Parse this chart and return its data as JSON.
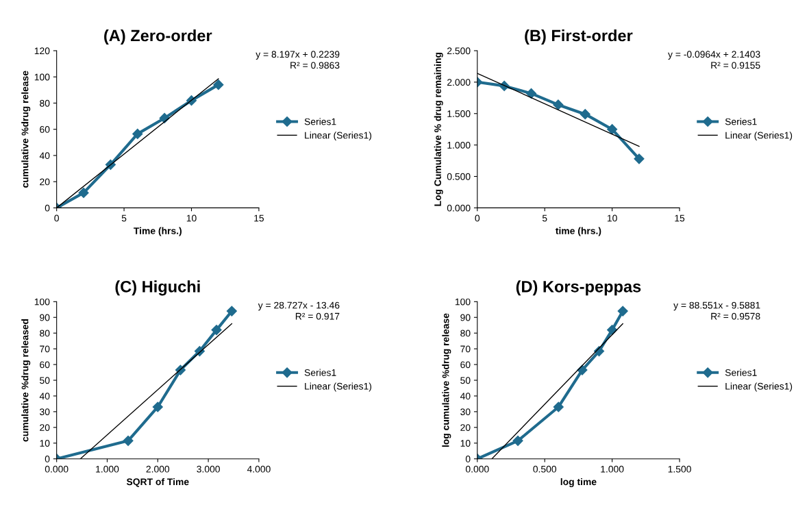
{
  "chart_data": [
    {
      "type": "line",
      "title": "(A) Zero-order",
      "xlabel": "Time (hrs.)",
      "ylabel": "cumulative %drug release",
      "x": [
        0,
        2,
        4,
        6,
        8,
        10,
        12
      ],
      "series": [
        {
          "name": "Series1",
          "color": "#1f6b8e",
          "values": [
            0,
            11.5,
            33,
            56.5,
            68.5,
            82,
            94
          ],
          "marker": "diamond"
        },
        {
          "name": "Linear (Series1)",
          "color": "#000000",
          "x": [
            0,
            12
          ],
          "values": [
            0,
            98.6
          ],
          "marker": "none"
        }
      ],
      "xlim": [
        0,
        15
      ],
      "xticks": [
        0,
        5,
        10,
        15
      ],
      "ylim": [
        0,
        120
      ],
      "yticks": [
        0,
        20,
        40,
        60,
        80,
        100,
        120
      ],
      "legend": "right",
      "grid": false,
      "annotations": [
        "y = 8.197x + 0.2239",
        "R² = 0.9863"
      ]
    },
    {
      "type": "line",
      "title": "(B) First-order",
      "xlabel": "time (hrs.)",
      "ylabel": "Log Cumulative % drug remaining",
      "x": [
        0,
        2,
        4,
        6,
        8,
        10,
        12
      ],
      "series": [
        {
          "name": "Series1",
          "color": "#1f6b8e",
          "values": [
            2.0,
            1.94,
            1.82,
            1.64,
            1.49,
            1.25,
            0.78
          ],
          "marker": "diamond"
        },
        {
          "name": "Linear (Series1)",
          "color": "#000000",
          "x": [
            0,
            12
          ],
          "values": [
            2.14,
            0.98
          ],
          "marker": "none"
        }
      ],
      "xlim": [
        0,
        15
      ],
      "xticks": [
        0,
        5,
        10,
        15
      ],
      "ylim": [
        0,
        2.5
      ],
      "yticks": [
        {
          "value": 0,
          "label": "0.000"
        },
        {
          "value": 0.5,
          "label": "0.500"
        },
        {
          "value": 1,
          "label": "1.000"
        },
        {
          "value": 1.5,
          "label": "1.500"
        },
        {
          "value": 2,
          "label": "2.000"
        },
        {
          "value": 2.5,
          "label": "2.500"
        }
      ],
      "legend": "right",
      "grid": false,
      "annotations": [
        "y = -0.0964x + 2.1403",
        "R² = 0.9155"
      ]
    },
    {
      "type": "line",
      "title": "(C) Higuchi",
      "xlabel": "SQRT of Time",
      "ylabel": "cumulative %drug released",
      "x": [
        0,
        1.414,
        2,
        2.449,
        2.828,
        3.162,
        3.464
      ],
      "series": [
        {
          "name": "Series1",
          "color": "#1f6b8e",
          "values": [
            0,
            11.5,
            33,
            56.5,
            68.5,
            82,
            94
          ],
          "marker": "diamond"
        },
        {
          "name": "Linear (Series1)",
          "color": "#000000",
          "x": [
            0.469,
            3.464
          ],
          "values": [
            0,
            86
          ],
          "marker": "none"
        }
      ],
      "xlim": [
        0,
        4
      ],
      "xticks": [
        {
          "value": 0,
          "label": "0.000"
        },
        {
          "value": 1,
          "label": "1.000"
        },
        {
          "value": 2,
          "label": "2.000"
        },
        {
          "value": 3,
          "label": "3.000"
        },
        {
          "value": 4,
          "label": "4.000"
        }
      ],
      "ylim": [
        0,
        100
      ],
      "yticks": [
        0,
        10,
        20,
        30,
        40,
        50,
        60,
        70,
        80,
        90,
        100
      ],
      "legend": "right",
      "grid": false,
      "annotations": [
        "y = 28.727x - 13.46",
        "R² = 0.917"
      ]
    },
    {
      "type": "line",
      "title": "(D) Kors-peppas",
      "xlabel": "log time",
      "ylabel": "log cumulative %drug release",
      "x": [
        0,
        0.301,
        0.602,
        0.778,
        0.903,
        1.0,
        1.079
      ],
      "series": [
        {
          "name": "Series1",
          "color": "#1f6b8e",
          "values": [
            0,
            11.5,
            33,
            56.5,
            68.5,
            82,
            94
          ],
          "marker": "diamond"
        },
        {
          "name": "Linear (Series1)",
          "color": "#000000",
          "x": [
            0.108,
            1.079
          ],
          "values": [
            0,
            86
          ],
          "marker": "none"
        }
      ],
      "xlim": [
        0,
        1.5
      ],
      "xticks": [
        {
          "value": 0,
          "label": "0.000"
        },
        {
          "value": 0.5,
          "label": "0.500"
        },
        {
          "value": 1,
          "label": "1.000"
        },
        {
          "value": 1.5,
          "label": "1.500"
        }
      ],
      "ylim": [
        0,
        100
      ],
      "yticks": [
        0,
        10,
        20,
        30,
        40,
        50,
        60,
        70,
        80,
        90,
        100
      ],
      "legend": "right",
      "grid": false,
      "annotations": [
        "y = 88.551x - 9.5881",
        "R² = 0.9578"
      ]
    }
  ]
}
